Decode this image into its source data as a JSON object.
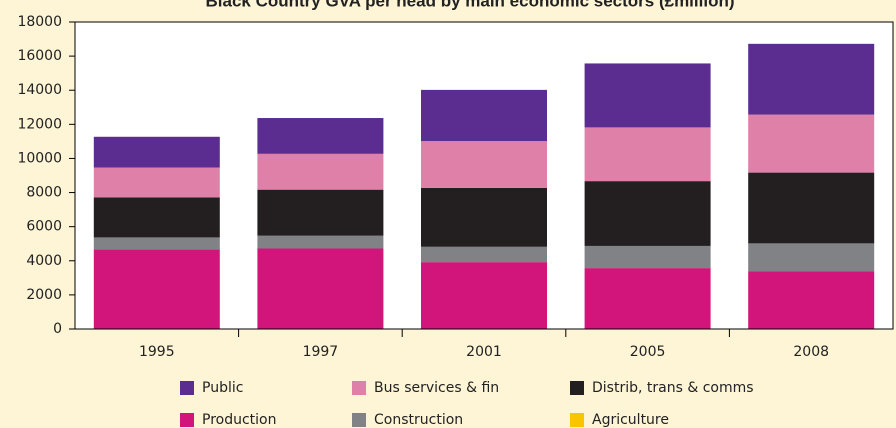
{
  "chart_data": {
    "type": "stacked-bar",
    "title": "Black Country GVA per head by main economic sectors (£million)",
    "categories": [
      "1995",
      "1997",
      "2001",
      "2005",
      "2008"
    ],
    "series": [
      {
        "name": "Public",
        "color": "#5b2d90",
        "values": [
          1800,
          2100,
          3000,
          3750,
          4150
        ]
      },
      {
        "name": "Bus services & fin",
        "color": "#de80a7",
        "values": [
          1750,
          2100,
          2750,
          3150,
          3400
        ]
      },
      {
        "name": "Distrib, trans & comms",
        "color": "#231f20",
        "values": [
          2350,
          2700,
          3450,
          3800,
          4150
        ]
      },
      {
        "name": "Production",
        "color": "#d2157a",
        "values": [
          4650,
          4700,
          3900,
          3550,
          3350
        ]
      },
      {
        "name": "Construction",
        "color": "#808285",
        "values": [
          700,
          750,
          900,
          1300,
          1650
        ]
      },
      {
        "name": "Agriculture",
        "color": "#f7c600",
        "values": [
          20,
          20,
          20,
          20,
          20
        ]
      }
    ],
    "ylim": [
      0,
      18000
    ],
    "yticks": [
      0,
      2000,
      4000,
      6000,
      8000,
      10000,
      12000,
      14000,
      16000,
      18000
    ]
  }
}
